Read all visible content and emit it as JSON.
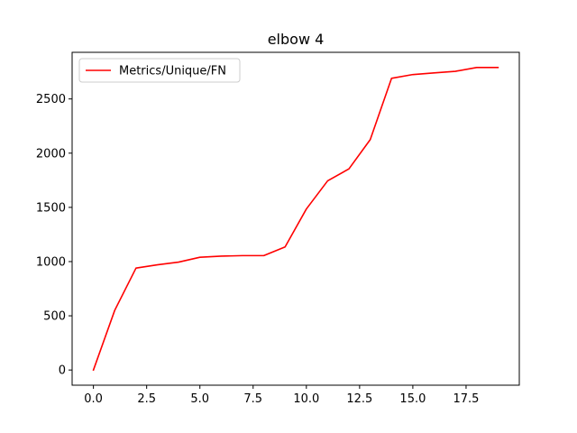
{
  "chart_data": {
    "type": "line",
    "title": "elbow 4",
    "xlabel": "",
    "ylabel": "",
    "xlim": [
      -1,
      20
    ],
    "ylim": [
      -140,
      2930
    ],
    "xticks": [
      0.0,
      2.5,
      5.0,
      7.5,
      10.0,
      12.5,
      15.0,
      17.5
    ],
    "xtick_labels": [
      "0.0",
      "2.5",
      "5.0",
      "7.5",
      "10.0",
      "12.5",
      "15.0",
      "17.5"
    ],
    "yticks": [
      0,
      500,
      1000,
      1500,
      2000,
      2500
    ],
    "ytick_labels": [
      "0",
      "500",
      "1000",
      "1500",
      "2000",
      "2500"
    ],
    "grid": false,
    "legend_position": "upper-left",
    "series": [
      {
        "name": "Metrics/Unique/FN",
        "color": "#ff0000",
        "x": [
          0,
          1,
          2,
          3,
          4,
          5,
          6,
          7,
          8,
          9,
          10,
          11,
          12,
          13,
          14,
          15,
          16,
          17,
          18,
          19
        ],
        "y": [
          0,
          550,
          940,
          970,
          995,
          1040,
          1050,
          1055,
          1055,
          1135,
          1485,
          1745,
          1855,
          2125,
          2690,
          2725,
          2740,
          2755,
          2790,
          2790
        ]
      }
    ]
  }
}
